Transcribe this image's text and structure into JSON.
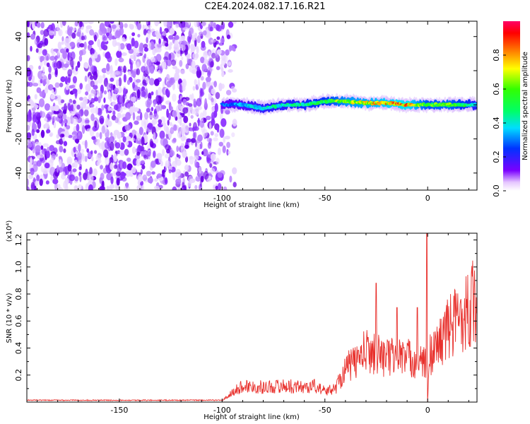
{
  "title": "C2E4.2024.082.17.16.R21",
  "chart_data": [
    {
      "type": "heatmap",
      "title": "C2E4.2024.082.17.16.R21",
      "xlabel": "Height of straight line (km)",
      "ylabel": "Frequency (Hz)",
      "xlim": [
        -195,
        24
      ],
      "ylim": [
        -50,
        49
      ],
      "x_ticks": [
        -150,
        -100,
        -50,
        0
      ],
      "x_tick_labels": [
        "-150",
        "-100",
        "-50",
        "0"
      ],
      "y_ticks": [
        -40,
        -20,
        0,
        20,
        40
      ],
      "y_tick_labels": [
        "-40",
        "-20",
        "0",
        "20",
        "40"
      ],
      "colorbar": {
        "label": "Normalized spectral amplitude",
        "range": [
          0,
          1
        ],
        "ticks": [
          0.0,
          0.2,
          0.4,
          0.6,
          0.8
        ],
        "tick_labels": [
          "0.0",
          "0.2",
          "0.4",
          "0.6",
          "0.8"
        ]
      },
      "noise_region": {
        "x_range": [
          -195,
          -100
        ],
        "level": 0.08
      },
      "ridge": {
        "x": [
          -100,
          -90,
          -80,
          -70,
          -60,
          -50,
          -40,
          -30,
          -20,
          -10,
          0,
          10,
          24
        ],
        "freq_hz": [
          0,
          0,
          -2,
          0,
          0,
          2,
          2,
          1,
          1,
          0,
          0,
          0,
          0
        ],
        "amplitude": [
          0.3,
          0.35,
          0.45,
          0.45,
          0.5,
          0.55,
          0.7,
          0.75,
          0.8,
          0.85,
          0.6,
          0.65,
          0.45
        ]
      }
    },
    {
      "type": "line",
      "xlabel": "Height of straight line (km)",
      "ylabel": "SNR (10 * v/v)",
      "y_multiplier": "(x10⁴)",
      "xlim": [
        -195,
        24
      ],
      "ylim": [
        0,
        1.25
      ],
      "x_ticks": [
        -150,
        -100,
        -50,
        0
      ],
      "x_tick_labels": [
        "-150",
        "-100",
        "-50",
        "0"
      ],
      "y_ticks": [
        0.2,
        0.4,
        0.6,
        0.8,
        1.0,
        1.2
      ],
      "y_tick_labels": [
        "0.2",
        "0.4",
        "0.6",
        "0.8",
        "1.0",
        "1.2"
      ],
      "series": [
        {
          "color": "#e8302c",
          "x": [
            -195,
            -100,
            -95,
            -90,
            -80,
            -70,
            -60,
            -55,
            -50,
            -45,
            -40,
            -35,
            -30,
            -25,
            -20,
            -15,
            -10,
            -5,
            -1,
            0,
            1,
            5,
            10,
            15,
            20,
            24
          ],
          "y": [
            0.01,
            0.01,
            0.07,
            0.12,
            0.11,
            0.12,
            0.11,
            0.12,
            0.08,
            0.1,
            0.25,
            0.3,
            0.38,
            0.36,
            0.33,
            0.34,
            0.33,
            0.3,
            0.28,
            0.0,
            0.35,
            0.42,
            0.55,
            0.62,
            0.7,
            0.78
          ]
        }
      ],
      "peaks": [
        {
          "x": -0.3,
          "y": 1.25
        },
        {
          "x": -25,
          "y": 0.88
        },
        {
          "x": -15,
          "y": 0.7
        },
        {
          "x": -5,
          "y": 0.7
        }
      ]
    }
  ]
}
